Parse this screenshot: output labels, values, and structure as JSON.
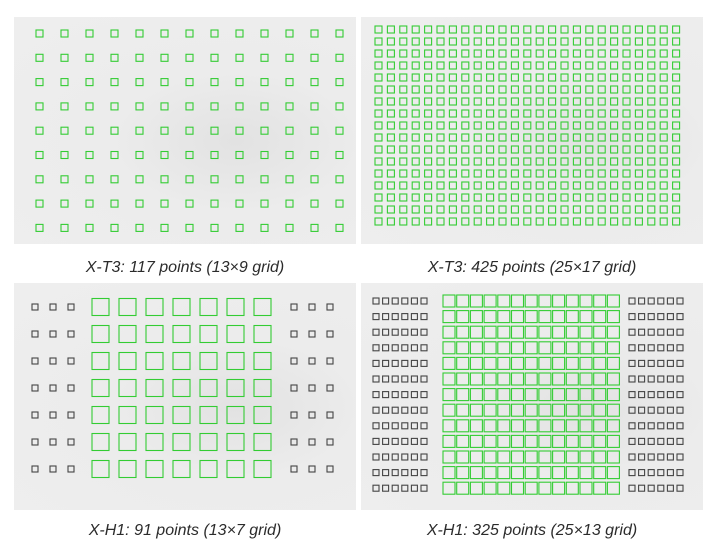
{
  "colors": {
    "panel_bg": "#ececec",
    "active_point": "#33cc33",
    "inactive_point": "#444444",
    "caption_text": "#2b2b2b"
  },
  "panels": [
    {
      "caption": "X-T3: 117 points (13×9 grid)",
      "cols": 13,
      "rows": 9,
      "active_start_col": 0,
      "active_cols": 13,
      "mode": "uniform",
      "point_size": "small"
    },
    {
      "caption": "X-T3: 425 points (25×17 grid)",
      "cols": 25,
      "rows": 17,
      "active_start_col": 0,
      "active_cols": 25,
      "mode": "uniform",
      "point_size": "small"
    },
    {
      "caption": "X-H1: 91 points (13×7 grid)",
      "cols": 13,
      "rows": 7,
      "active_start_col": 3,
      "active_cols": 7,
      "mode": "split",
      "point_size": "large"
    },
    {
      "caption": "X-H1: 325 points (25×13 grid)",
      "cols": 25,
      "rows": 13,
      "active_start_col": 6,
      "active_cols": 13,
      "mode": "split",
      "point_size": "small"
    }
  ]
}
